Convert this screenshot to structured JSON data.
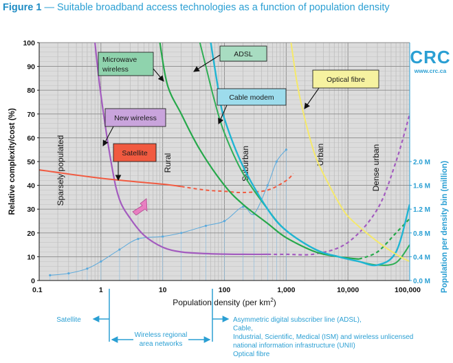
{
  "figure": {
    "label": "Figure 1",
    "dash": "—",
    "title": "Suitable broadband access technologies as a function of population density"
  },
  "logo": {
    "text": "CRC",
    "url": "www.crc.ca"
  },
  "colors": {
    "accent": "#2a9fd3",
    "new_wireless": "#a35bbf",
    "satellite": "#f15a40",
    "microwave": "#26a84a",
    "adsl": "#2fae55",
    "cable": "#1fb5d3",
    "fibre": "#f5e96a",
    "density": "#5aa9dc"
  },
  "chart_data": {
    "type": "line",
    "xlabel": "Population density (per km",
    "xlabel_sup": "2",
    "xlabel_end": ")",
    "ylabel": "Relative complexity/cost (%)",
    "ylabel_right": "Population per density bin (million)",
    "xscale": "log",
    "xlim": [
      0.1,
      100000
    ],
    "ylim": [
      0,
      100
    ],
    "x_ticks": [
      0.1,
      1,
      10,
      100,
      1000,
      10000,
      100000
    ],
    "x_tick_labels": [
      "0.1",
      "1",
      "10",
      "100",
      "1,000",
      "10,000",
      "100,000"
    ],
    "y_ticks": [
      0,
      10,
      20,
      30,
      40,
      50,
      60,
      70,
      80,
      90,
      100
    ],
    "right_ticks": [
      {
        "label": "0.0 M",
        "y": 0
      },
      {
        "label": "0.4 M",
        "y": 10
      },
      {
        "label": "0.8 M",
        "y": 20
      },
      {
        "label": "1.2 M",
        "y": 30
      },
      {
        "label": "1.6 M",
        "y": 40
      },
      {
        "label": "2.0 M",
        "y": 50
      }
    ],
    "grid": true,
    "zones": [
      "Sparsely populated",
      "Rural",
      "Suburban",
      "Urban",
      "Dense urban"
    ],
    "series": [
      {
        "name": "New wireless",
        "key": "new_wireless",
        "points": [
          [
            0.8,
            100
          ],
          [
            1,
            78
          ],
          [
            1.5,
            48
          ],
          [
            2,
            34
          ],
          [
            3,
            26
          ],
          [
            5,
            19
          ],
          [
            10,
            14
          ],
          [
            20,
            12
          ],
          [
            50,
            11.3
          ],
          [
            100,
            11.1
          ],
          [
            200,
            11
          ],
          [
            500,
            11
          ]
        ],
        "dashed": [
          [
            500,
            11
          ],
          [
            1000,
            11
          ],
          [
            3000,
            11.2
          ],
          [
            10000,
            16
          ],
          [
            30000,
            30
          ],
          [
            60000,
            50
          ],
          [
            100000,
            70
          ]
        ]
      },
      {
        "name": "Satellite",
        "key": "satellite",
        "points": [
          [
            0.1,
            46.5
          ],
          [
            1,
            43
          ],
          [
            10,
            40.5
          ],
          [
            20,
            39.5
          ]
        ],
        "dashed": [
          [
            20,
            39.5
          ],
          [
            50,
            38
          ],
          [
            100,
            37.5
          ],
          [
            200,
            37
          ],
          [
            500,
            38
          ],
          [
            1000,
            42
          ],
          [
            1300,
            45
          ]
        ]
      },
      {
        "name": "Microwave wireless",
        "key": "microwave",
        "points": [
          [
            9,
            100
          ],
          [
            12,
            82
          ],
          [
            20,
            70
          ],
          [
            40,
            55
          ],
          [
            100,
            40
          ],
          [
            200,
            32
          ],
          [
            500,
            24
          ],
          [
            1000,
            18
          ],
          [
            3000,
            12
          ],
          [
            7000,
            10
          ],
          [
            15000,
            9
          ]
        ],
        "dashed": [
          [
            15000,
            9
          ],
          [
            30000,
            12
          ],
          [
            60000,
            20
          ],
          [
            100000,
            26
          ]
        ]
      },
      {
        "name": "ADSL",
        "key": "adsl",
        "points": [
          [
            40,
            100
          ],
          [
            50,
            90
          ],
          [
            70,
            75
          ],
          [
            100,
            62
          ],
          [
            200,
            45
          ],
          [
            500,
            30
          ],
          [
            1000,
            21
          ],
          [
            3000,
            13
          ],
          [
            7000,
            10
          ],
          [
            15000,
            8
          ],
          [
            30000,
            6.5
          ],
          [
            60000,
            7.5
          ],
          [
            100000,
            15
          ]
        ]
      },
      {
        "name": "Cable  modem",
        "key": "cable",
        "points": [
          [
            60,
            100
          ],
          [
            80,
            80
          ],
          [
            100,
            68
          ],
          [
            200,
            48
          ],
          [
            500,
            30
          ],
          [
            1000,
            21
          ],
          [
            3000,
            13
          ],
          [
            7000,
            10
          ],
          [
            15000,
            8
          ],
          [
            30000,
            6.5
          ],
          [
            60000,
            12
          ],
          [
            100000,
            32
          ]
        ]
      },
      {
        "name": "Optical fibre",
        "key": "fibre",
        "points": [
          [
            1200,
            100
          ],
          [
            1500,
            83
          ],
          [
            2000,
            68
          ],
          [
            3000,
            52
          ],
          [
            5000,
            40
          ],
          [
            7000,
            33
          ],
          [
            10000,
            27
          ],
          [
            20000,
            20
          ],
          [
            40000,
            14
          ],
          [
            70000,
            10
          ],
          [
            100000,
            8
          ]
        ]
      }
    ],
    "density_bins": {
      "name": "Population per density bin",
      "points": [
        [
          0.15,
          2.2
        ],
        [
          0.3,
          3
        ],
        [
          0.6,
          5
        ],
        [
          1,
          8
        ],
        [
          2,
          13
        ],
        [
          4,
          17.5
        ],
        [
          10,
          18.5
        ],
        [
          20,
          20
        ],
        [
          50,
          23
        ],
        [
          100,
          25
        ],
        [
          200,
          31
        ],
        [
          300,
          28
        ],
        [
          500,
          40
        ],
        [
          700,
          50
        ],
        [
          1000,
          55
        ]
      ]
    },
    "annotations": [
      {
        "text": "Satellite",
        "key": "satellite"
      },
      {
        "text": "New wireless",
        "key": "new_wireless"
      },
      {
        "text": "Microwave",
        "text2": "wireless",
        "key": "microwave"
      },
      {
        "text": "ADSL",
        "key": "adsl"
      },
      {
        "text": "Cable  modem",
        "key": "cable"
      },
      {
        "text": "Optical fibre",
        "key": "fibre"
      }
    ]
  },
  "bottom": {
    "left_label": "Satellite",
    "middle_label_1": "Wireless regional",
    "middle_label_2": "area networks",
    "right_lines": [
      "Asymmetric digital subscriber line (ADSL),",
      "Cable,",
      "Industrial, Scientific, Medical (ISM) and wireless unlicensed",
      "national information infrastructure (UNII)",
      "Optical fibre"
    ]
  }
}
